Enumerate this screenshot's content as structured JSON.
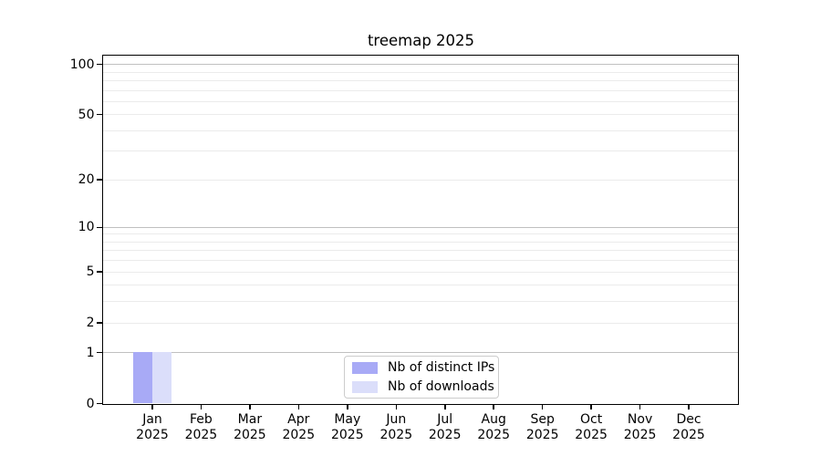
{
  "chart_data": {
    "type": "bar",
    "title": "treemap 2025",
    "x": {
      "months": [
        "Jan",
        "Feb",
        "Mar",
        "Apr",
        "May",
        "Jun",
        "Jul",
        "Aug",
        "Sep",
        "Oct",
        "Nov",
        "Dec"
      ],
      "year": "2025"
    },
    "series": [
      {
        "name": "Nb of distinct IPs",
        "color": "#a8aaf6",
        "values": [
          1,
          0,
          0,
          0,
          0,
          0,
          0,
          0,
          0,
          0,
          0,
          0
        ]
      },
      {
        "name": "Nb of downloads",
        "color": "#dbdefa",
        "values": [
          1,
          0,
          0,
          0,
          0,
          0,
          0,
          0,
          0,
          0,
          0,
          0
        ]
      }
    ],
    "y_axis": {
      "scale": "log1p",
      "tick_labels": [
        0,
        1,
        2,
        5,
        10,
        20,
        50,
        100
      ],
      "major_gridlines": [
        1,
        10,
        100
      ],
      "minor_gridlines": [
        2,
        3,
        4,
        5,
        6,
        7,
        8,
        9,
        20,
        30,
        40,
        50,
        60,
        70,
        80,
        90
      ],
      "ymax": 112,
      "ymin": 0
    },
    "legend": {
      "position": "lower center",
      "items": [
        {
          "label": "Nb of distinct IPs",
          "color": "#a8aaf6"
        },
        {
          "label": "Nb of downloads",
          "color": "#dbdefa"
        }
      ]
    },
    "grid": true,
    "colors": {
      "background": "#ffffff",
      "axis": "#000000",
      "major_grid": "#c0c0c0",
      "minor_grid": "#ebebeb"
    }
  }
}
